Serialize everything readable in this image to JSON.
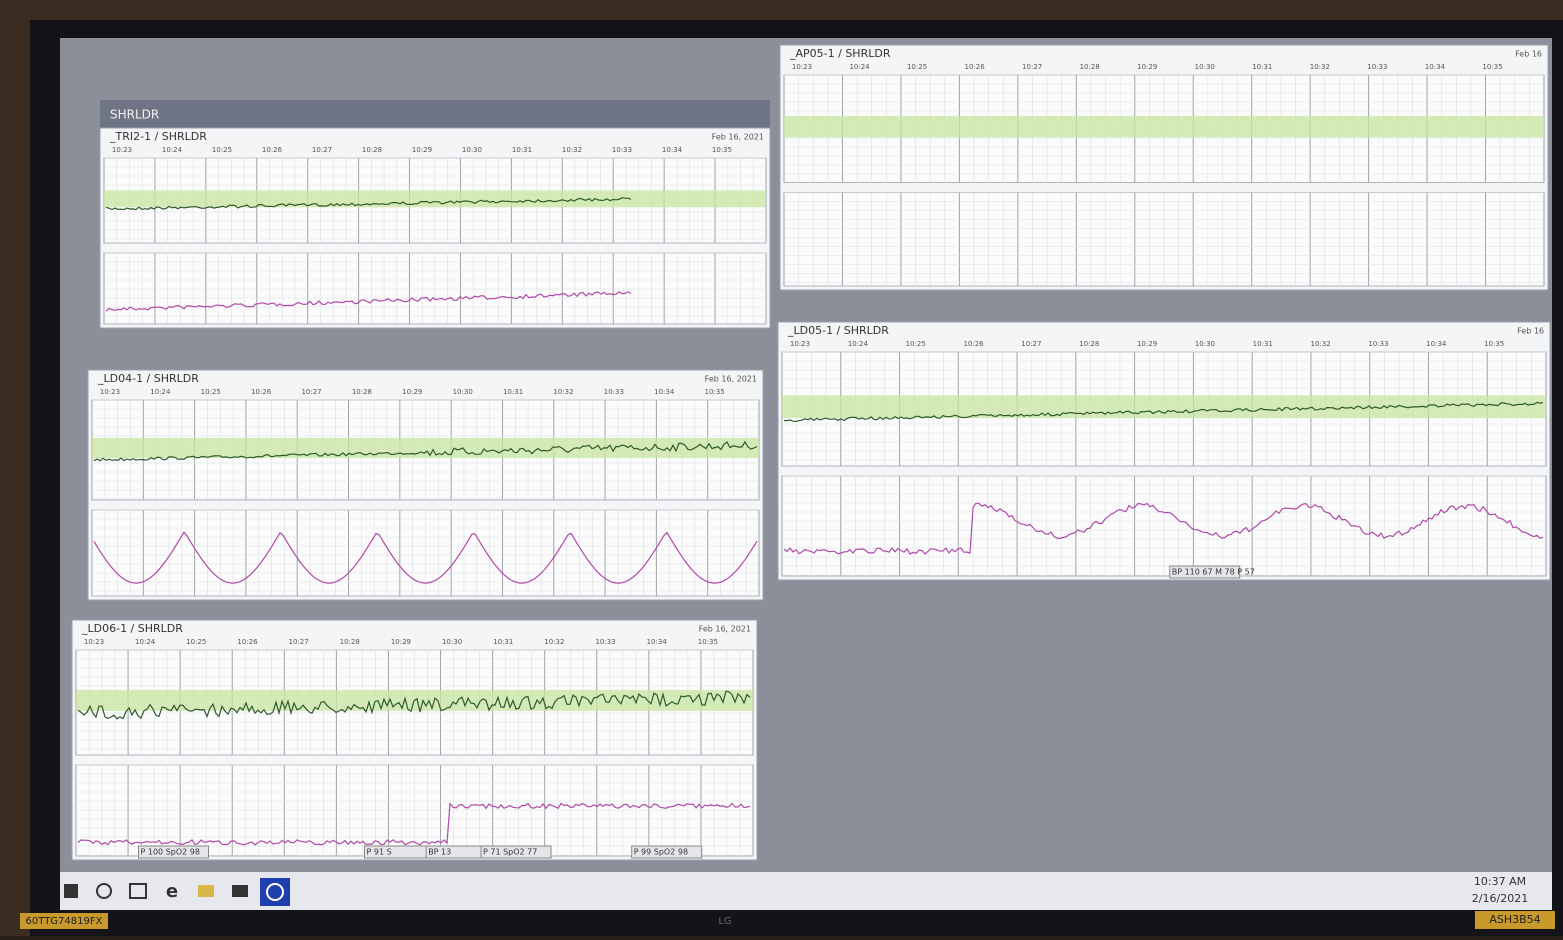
{
  "window_title": "SHRLDR",
  "panels": [
    {
      "name": "_TRI2-1 / SHRLDR",
      "date": "Feb 16, 2021",
      "times": [
        "10:23",
        "10:24",
        "10:25",
        "10:26",
        "10:27",
        "10:28",
        "10:29",
        "10:30",
        "10:31",
        "10:32",
        "10:33",
        "10:34",
        "10:35"
      ],
      "annotations": []
    },
    {
      "name": "_AP05-1 / SHRLDR",
      "date": "Feb 16",
      "times": [
        "10:23",
        "10:24",
        "10:25",
        "10:26",
        "10:27",
        "10:28",
        "10:29",
        "10:30",
        "10:31",
        "10:32",
        "10:33",
        "10:34",
        "10:35"
      ],
      "annotations": []
    },
    {
      "name": "_LD04-1 / SHRLDR",
      "date": "Feb 16, 2021",
      "times": [
        "10:23",
        "10:24",
        "10:25",
        "10:26",
        "10:27",
        "10:28",
        "10:29",
        "10:30",
        "10:31",
        "10:32",
        "10:33",
        "10:34",
        "10:35"
      ],
      "annotations": []
    },
    {
      "name": "_LD05-1 / SHRLDR",
      "date": "Feb 16",
      "times": [
        "10:23",
        "10:24",
        "10:25",
        "10:26",
        "10:27",
        "10:28",
        "10:29",
        "10:30",
        "10:31",
        "10:32",
        "10:33",
        "10:34",
        "10:35"
      ],
      "annotations": [
        "BP 110 67 M 78 P 57"
      ]
    },
    {
      "name": "_LD06-1 / SHRLDR",
      "date": "Feb 16, 2021",
      "times": [
        "10:23",
        "10:24",
        "10:25",
        "10:26",
        "10:27",
        "10:28",
        "10:29",
        "10:30",
        "10:31",
        "10:32",
        "10:33",
        "10:34",
        "10:35"
      ],
      "annotations": [
        "P 100 SpO2 98",
        "P 91 S",
        "BP 13",
        "P 71 SpO2 77",
        "P 99 SpO2 98"
      ]
    }
  ],
  "taskbar": {
    "time": "10:37 AM",
    "date": "2/16/2021"
  },
  "bezel": {
    "left_label": "60TTG74819FX",
    "brand": "LG",
    "right_label": "ASH3B54"
  }
}
